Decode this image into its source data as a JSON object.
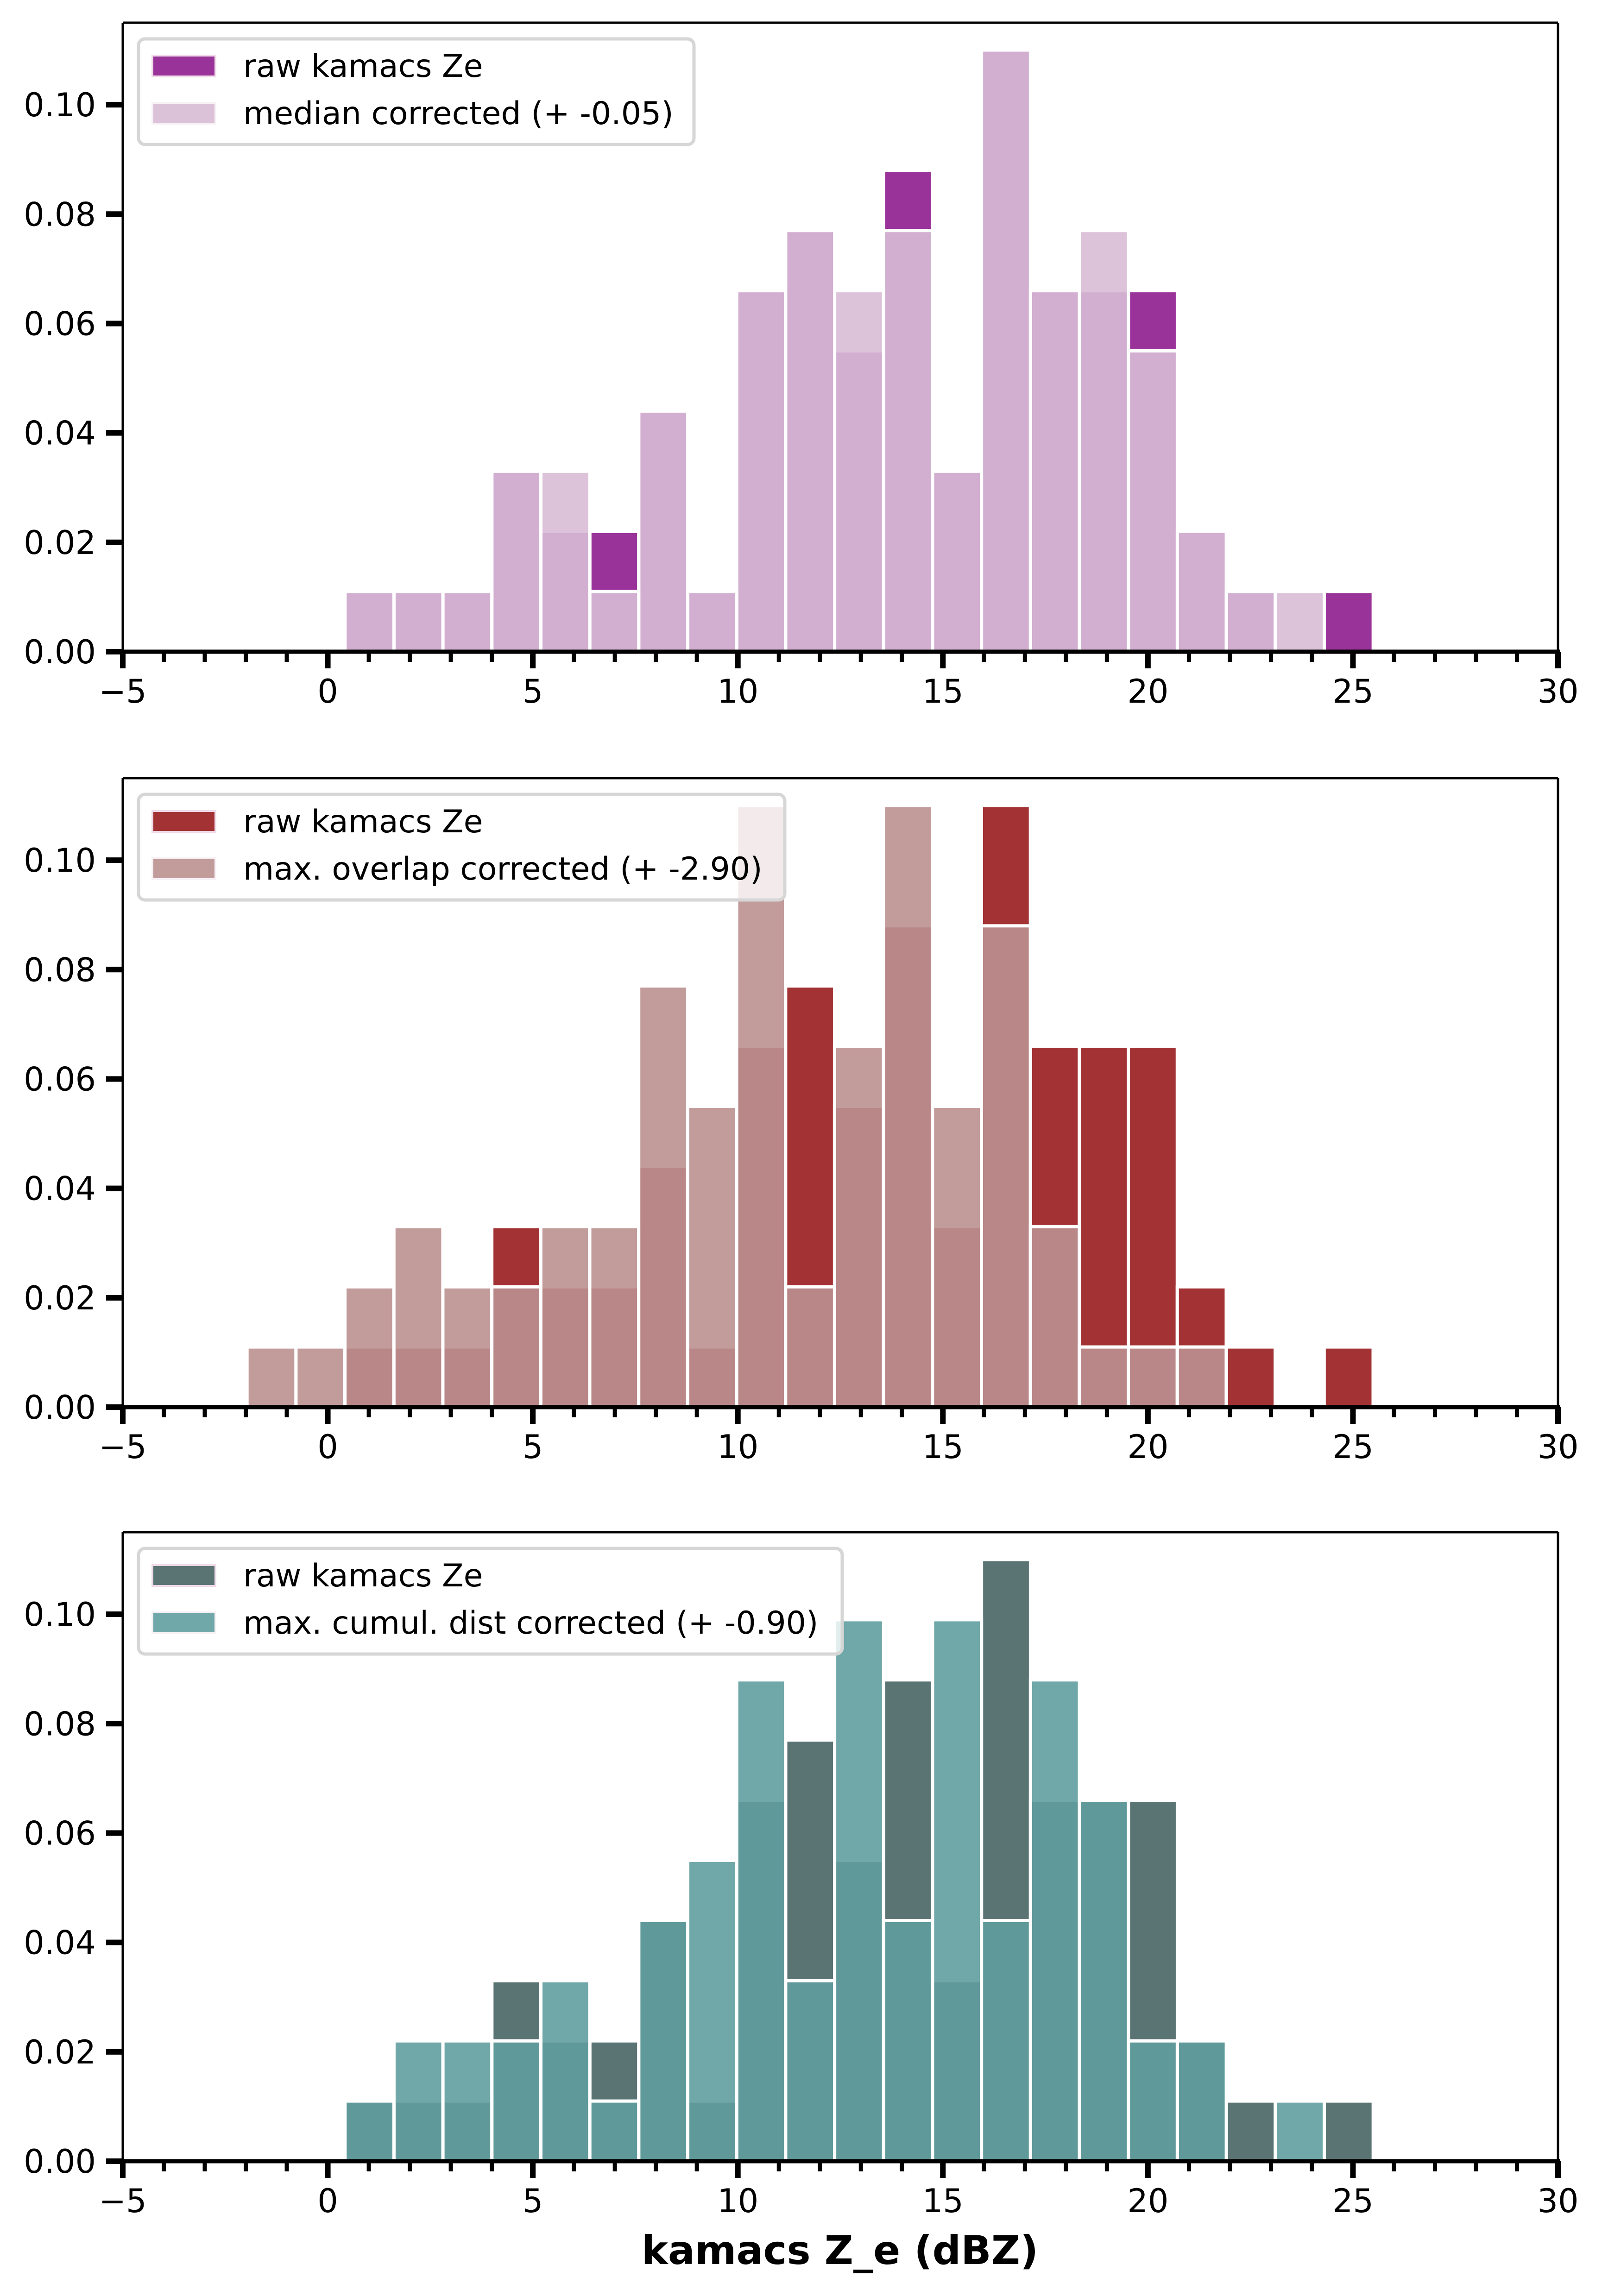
{
  "chart_data": [
    {
      "type": "bar",
      "subtype": "histogram",
      "panel": "top",
      "title": "",
      "xlabel": "",
      "ylabel": "",
      "xlim": [
        -5,
        30
      ],
      "ylim": [
        0,
        0.115
      ],
      "xticks": [
        -5,
        0,
        5,
        10,
        15,
        20,
        25,
        30
      ],
      "xtick_labels": [
        "−5",
        "0",
        "5",
        "10",
        "15",
        "20",
        "25",
        "30"
      ],
      "yticks": [
        0.0,
        0.02,
        0.04,
        0.06,
        0.08,
        0.1
      ],
      "ytick_labels": [
        "0.00",
        "0.02",
        "0.04",
        "0.06",
        "0.08",
        "0.10"
      ],
      "grid": false,
      "legend_position": "top-left",
      "bin_start": 0.42,
      "bin_width": 1.194,
      "series": [
        {
          "name": "raw kamacs Ze",
          "color": "#993399",
          "values": [
            0.011,
            0.011,
            0.011,
            0.033,
            0.022,
            0.022,
            0.044,
            0.011,
            0.066,
            0.077,
            0.055,
            0.088,
            0.033,
            0.11,
            0.066,
            0.066,
            0.066,
            0.022,
            0.011,
            0.0,
            0.011
          ]
        },
        {
          "name": "median corrected (+ -0.05)",
          "color": "#d8bdd6",
          "legend_color": "#dbc2d9",
          "values": [
            0.011,
            0.011,
            0.011,
            0.033,
            0.033,
            0.011,
            0.044,
            0.011,
            0.066,
            0.077,
            0.066,
            0.077,
            0.033,
            0.11,
            0.066,
            0.077,
            0.055,
            0.022,
            0.011,
            0.011,
            0.0
          ]
        }
      ]
    },
    {
      "type": "bar",
      "subtype": "histogram",
      "panel": "middle",
      "title": "",
      "xlabel": "",
      "ylabel": "",
      "xlim": [
        -5,
        30
      ],
      "ylim": [
        0,
        0.115
      ],
      "xticks": [
        -5,
        0,
        5,
        10,
        15,
        20,
        25,
        30
      ],
      "xtick_labels": [
        "−5",
        "0",
        "5",
        "10",
        "15",
        "20",
        "25",
        "30"
      ],
      "yticks": [
        0.0,
        0.02,
        0.04,
        0.06,
        0.08,
        0.1
      ],
      "ytick_labels": [
        "0.00",
        "0.02",
        "0.04",
        "0.06",
        "0.08",
        "0.10"
      ],
      "grid": false,
      "legend_position": "top-left",
      "bin_start": -1.97,
      "bin_width": 1.194,
      "series": [
        {
          "name": "raw kamacs Ze",
          "color": "#a23234",
          "values": [
            0.0,
            0.0,
            0.011,
            0.011,
            0.011,
            0.033,
            0.022,
            0.022,
            0.044,
            0.011,
            0.066,
            0.077,
            0.055,
            0.088,
            0.033,
            0.11,
            0.066,
            0.066,
            0.066,
            0.022,
            0.011,
            0.0,
            0.011
          ]
        },
        {
          "name": "max. overlap corrected (+ -2.90)",
          "color": "#bb9090",
          "legend_color": "#c29b9b",
          "values": [
            0.011,
            0.011,
            0.022,
            0.033,
            0.022,
            0.022,
            0.033,
            0.033,
            0.077,
            0.055,
            0.11,
            0.022,
            0.066,
            0.11,
            0.055,
            0.088,
            0.033,
            0.011,
            0.011,
            0.011,
            0.0,
            0.0,
            0.0
          ]
        }
      ]
    },
    {
      "type": "bar",
      "subtype": "histogram",
      "panel": "bottom",
      "title": "",
      "xlabel": "kamacs Z_e (dBZ)",
      "ylabel": "",
      "xlim": [
        -5,
        30
      ],
      "ylim": [
        0,
        0.115
      ],
      "xticks": [
        -5,
        0,
        5,
        10,
        15,
        20,
        25,
        30
      ],
      "xtick_labels": [
        "−5",
        "0",
        "5",
        "10",
        "15",
        "20",
        "25",
        "30"
      ],
      "yticks": [
        0.0,
        0.02,
        0.04,
        0.06,
        0.08,
        0.1
      ],
      "ytick_labels": [
        "0.00",
        "0.02",
        "0.04",
        "0.06",
        "0.08",
        "0.10"
      ],
      "grid": false,
      "legend_position": "top-left",
      "bin_start": 0.42,
      "bin_width": 1.194,
      "series": [
        {
          "name": "raw kamacs Ze",
          "color": "#5a7473",
          "values": [
            0.011,
            0.011,
            0.011,
            0.033,
            0.022,
            0.022,
            0.044,
            0.011,
            0.066,
            0.077,
            0.055,
            0.088,
            0.033,
            0.11,
            0.066,
            0.066,
            0.066,
            0.022,
            0.011,
            0.0,
            0.011
          ]
        },
        {
          "name": "max. cumul. dist corrected (+ -0.90)",
          "color": "#609d9e",
          "legend_color": "#70a7a8",
          "values": [
            0.011,
            0.022,
            0.022,
            0.022,
            0.033,
            0.011,
            0.044,
            0.055,
            0.088,
            0.033,
            0.099,
            0.044,
            0.099,
            0.044,
            0.088,
            0.066,
            0.022,
            0.022,
            0.0,
            0.011,
            0.0
          ]
        }
      ]
    }
  ],
  "figure": {
    "xlabel": "kamacs Z_e (dBZ)"
  }
}
